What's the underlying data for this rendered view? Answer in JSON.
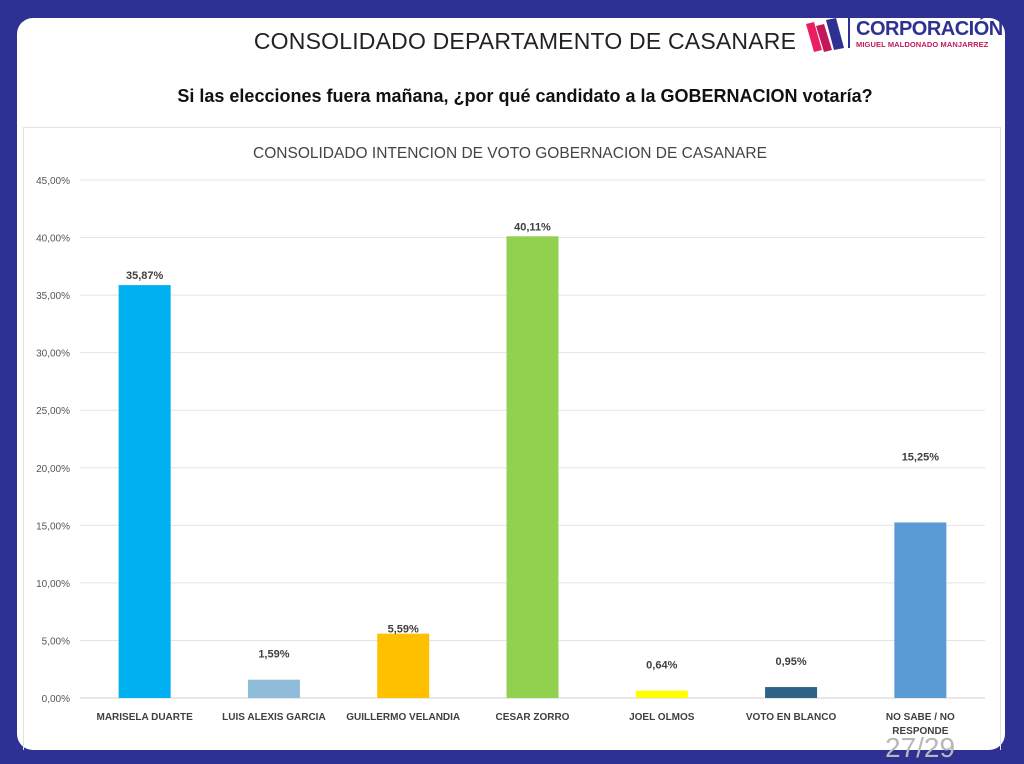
{
  "header": {
    "title": "CONSOLIDADO DEPARTAMENTO DE CASANARE",
    "question": "Si las elecciones fuera mañana, ¿por qué candidato a la GOBERNACION votaría?",
    "logo": {
      "name": "CORPORACIÓN",
      "subtitle": "MIGUEL MALDONADO MANJARREZ",
      "colors": {
        "primary": "#2e3192",
        "accent": "#e91e63"
      }
    }
  },
  "page_indicator": "27/29",
  "chart_data": {
    "type": "bar",
    "title": "CONSOLIDADO INTENCION DE VOTO GOBERNACION DE CASANARE",
    "xlabel": "",
    "ylabel": "",
    "ylim": [
      0,
      45
    ],
    "yticks": [
      "0,00%",
      "5,00%",
      "10,00%",
      "15,00%",
      "20,00%",
      "25,00%",
      "30,00%",
      "35,00%",
      "40,00%",
      "45,00%"
    ],
    "ytick_values": [
      0,
      5,
      10,
      15,
      20,
      25,
      30,
      35,
      40,
      45
    ],
    "grid": true,
    "legend": "none",
    "categories": [
      "MARISELA DUARTE",
      "LUIS ALEXIS GARCIA",
      "GUILLERMO VELANDIA",
      "CESAR ZORRO",
      "JOEL OLMOS",
      "VOTO EN BLANCO",
      "NO SABE / NO RESPONDE"
    ],
    "category_lines": [
      [
        "MARISELA DUARTE"
      ],
      [
        "LUIS ALEXIS GARCIA"
      ],
      [
        "GUILLERMO VELANDIA"
      ],
      [
        "CESAR ZORRO"
      ],
      [
        "JOEL OLMOS"
      ],
      [
        "VOTO EN BLANCO"
      ],
      [
        "NO SABE / NO",
        "RESPONDE"
      ]
    ],
    "values": [
      35.87,
      1.59,
      5.59,
      40.11,
      0.64,
      0.95,
      15.25
    ],
    "labels": [
      "35,87%",
      "1,59%",
      "5,59%",
      "40,11%",
      "0,64%",
      "0,95%",
      "15,25%"
    ],
    "colors": [
      "#00b0f0",
      "#8fbcd9",
      "#ffc000",
      "#92d050",
      "#ffff00",
      "#2e6286",
      "#5b9bd5"
    ]
  }
}
